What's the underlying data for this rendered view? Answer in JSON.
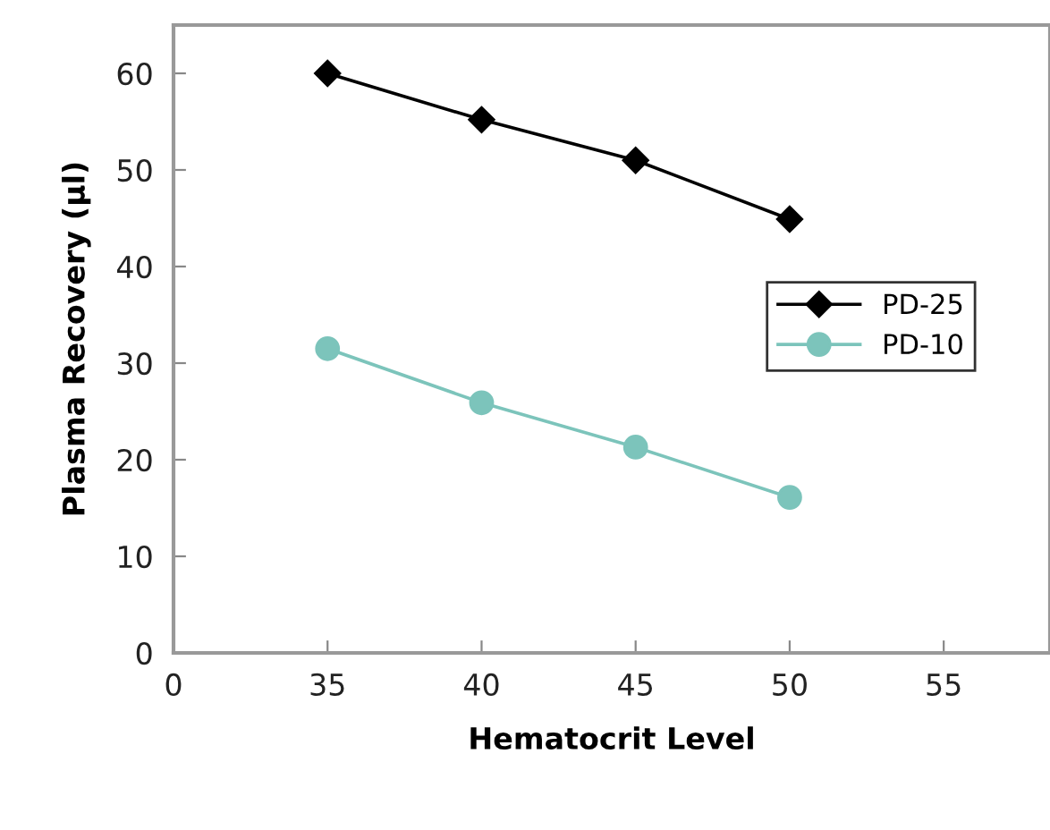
{
  "chart_data": {
    "type": "line",
    "xlabel": "Hematocrit Level",
    "ylabel": "Plasma Recovery (µl)",
    "categories": [
      "0",
      "35",
      "40",
      "45",
      "50",
      "55"
    ],
    "series": [
      {
        "name": "PD-25",
        "color": "#000000",
        "marker": "diamond",
        "values": [
          null,
          60,
          55.2,
          51.0,
          44.9,
          null
        ]
      },
      {
        "name": "PD-10",
        "color": "#7cc4bb",
        "marker": "circle",
        "values": [
          null,
          31.5,
          25.9,
          21.3,
          16.1,
          null
        ]
      }
    ],
    "ylim": [
      0,
      65
    ],
    "yticks": [
      0,
      10,
      20,
      30,
      40,
      50,
      60
    ],
    "grid": false,
    "legend": "right",
    "line_style": "solid"
  }
}
